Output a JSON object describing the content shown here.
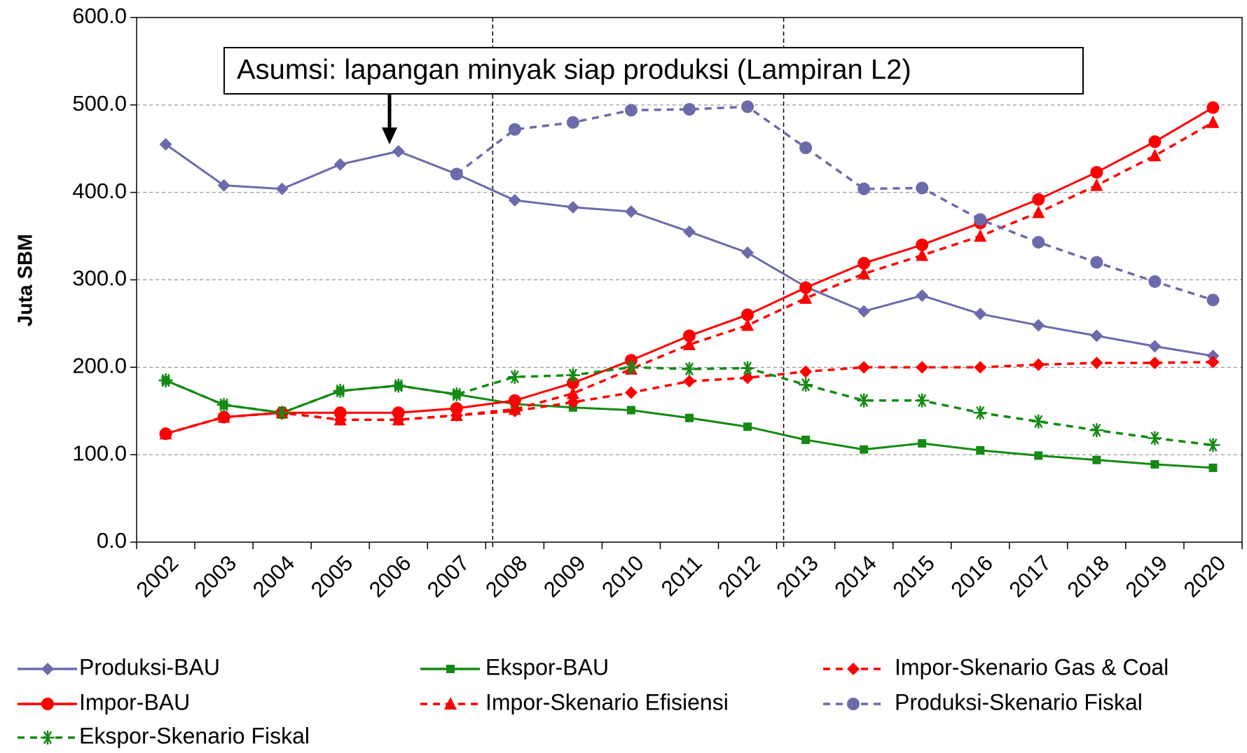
{
  "chart_data": {
    "type": "line",
    "annotation": "Asumsi: lapangan minyak siap produksi (Lampiran L2)",
    "ylabel": "Juta SBM",
    "categories": [
      "2002",
      "2003",
      "2004",
      "2005",
      "2006",
      "2007",
      "2008",
      "2009",
      "2010",
      "2011",
      "2012",
      "2013",
      "2014",
      "2015",
      "2016",
      "2017",
      "2018",
      "2019",
      "2020"
    ],
    "ylim": [
      0,
      600
    ],
    "yticks": [
      {
        "value": 0,
        "label": "0.0"
      },
      {
        "value": 100,
        "label": "100.0"
      },
      {
        "value": 200,
        "label": "200.0"
      },
      {
        "value": 300,
        "label": "300.0"
      },
      {
        "value": 400,
        "label": "400.0"
      },
      {
        "value": 500,
        "label": "500.0"
      },
      {
        "value": 600,
        "label": "600.0"
      }
    ],
    "grid": true,
    "legend": "bottom",
    "series": [
      {
        "name": "Produksi-BAU",
        "color": "#6b6bab",
        "marker": "diamond",
        "dash": false,
        "values": [
          455,
          408,
          404,
          432,
          447,
          421,
          391,
          383,
          378,
          355,
          331,
          292,
          264,
          282,
          261,
          248,
          236,
          224,
          213
        ]
      },
      {
        "name": "Ekspor-BAU",
        "color": "#138a13",
        "marker": "square",
        "dash": false,
        "values": [
          185,
          157,
          148,
          173,
          179,
          169,
          158,
          154,
          151,
          142,
          132,
          117,
          106,
          113,
          105,
          99,
          94,
          89,
          85
        ]
      },
      {
        "name": "Impor-Skenario Gas & Coal",
        "color": "#ff0000",
        "marker": "diamond",
        "dash": true,
        "values": [
          124,
          143,
          148,
          140,
          140,
          145,
          150,
          160,
          171,
          184,
          188,
          195,
          200,
          200,
          200,
          203,
          205,
          205,
          206
        ]
      },
      {
        "name": "Impor-BAU",
        "color": "#ff0000",
        "marker": "circle",
        "dash": false,
        "values": [
          124,
          143,
          148,
          148,
          148,
          153,
          162,
          182,
          208,
          236,
          260,
          291,
          319,
          340,
          365,
          392,
          423,
          458,
          497
        ]
      },
      {
        "name": "Impor-Skenario Efisiensi",
        "color": "#ff0000",
        "marker": "triangle",
        "dash": true,
        "values": [
          124,
          143,
          148,
          140,
          140,
          145,
          152,
          170,
          198,
          226,
          248,
          279,
          307,
          328,
          350,
          377,
          408,
          442,
          480
        ]
      },
      {
        "name": "Produksi-Skenario Fiskal",
        "color": "#6b6bab",
        "marker": "circle",
        "dash": true,
        "values": [
          null,
          null,
          null,
          null,
          null,
          421,
          472,
          480,
          494,
          495,
          498,
          451,
          404,
          405,
          369,
          343,
          320,
          298,
          277
        ]
      },
      {
        "name": "Ekspor-Skenario Fiskal",
        "color": "#138a13",
        "marker": "star",
        "dash": true,
        "values": [
          185,
          157,
          148,
          173,
          179,
          169,
          189,
          191,
          200,
          198,
          199,
          180,
          162,
          162,
          148,
          138,
          128,
          119,
          111
        ]
      }
    ]
  }
}
